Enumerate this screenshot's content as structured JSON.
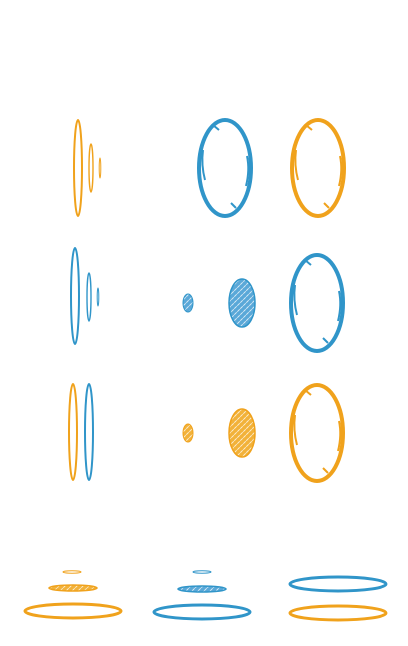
{
  "sprite_sheet": {
    "background": "#ffffff",
    "palette": {
      "orange": "#f0a21c",
      "blue": "#3095c9"
    },
    "sprites": [
      {
        "id": "orange-portal-edge-sequence",
        "color": "orange",
        "shape": "ring",
        "view": "side"
      },
      {
        "id": "blue-portal-ring-large-r1",
        "color": "blue",
        "shape": "ring",
        "view": "front"
      },
      {
        "id": "orange-portal-ring-large-r1",
        "color": "orange",
        "shape": "ring",
        "view": "front"
      },
      {
        "id": "blue-portal-edge-sequence",
        "color": "blue",
        "shape": "ring",
        "view": "side"
      },
      {
        "id": "blue-portal-fill-small",
        "color": "blue",
        "shape": "filled",
        "view": "front"
      },
      {
        "id": "blue-portal-fill-medium",
        "color": "blue",
        "shape": "filled",
        "view": "front"
      },
      {
        "id": "blue-portal-ring-large-r2",
        "color": "blue",
        "shape": "ring",
        "view": "front"
      },
      {
        "id": "orange-blue-portal-edge-pair",
        "color": "mixed",
        "shape": "ring",
        "view": "side"
      },
      {
        "id": "orange-portal-fill-small",
        "color": "orange",
        "shape": "filled",
        "view": "front"
      },
      {
        "id": "orange-portal-fill-medium",
        "color": "orange",
        "shape": "filled",
        "view": "front"
      },
      {
        "id": "orange-portal-ring-large-r3",
        "color": "orange",
        "shape": "ring",
        "view": "front"
      },
      {
        "id": "orange-portal-floor-stack",
        "color": "orange",
        "shape": "ring",
        "view": "top"
      },
      {
        "id": "blue-portal-floor-stack",
        "color": "blue",
        "shape": "ring",
        "view": "top"
      },
      {
        "id": "blue-orange-portal-floor-pair",
        "color": "mixed",
        "shape": "ring",
        "view": "top"
      }
    ]
  }
}
